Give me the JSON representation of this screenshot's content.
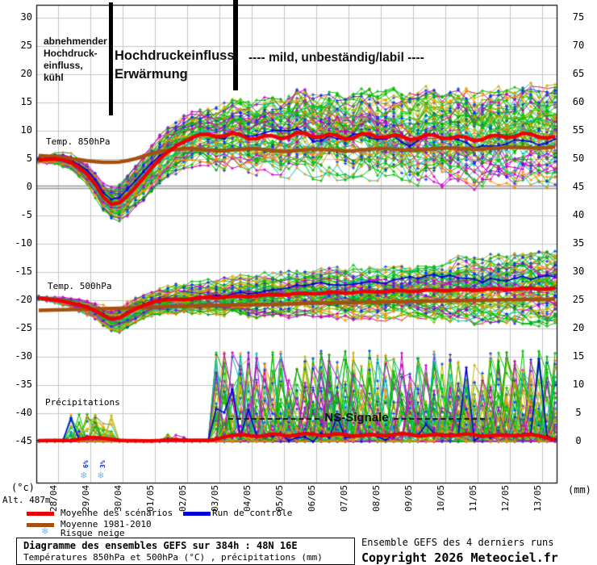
{
  "colors": {
    "mean": "#ee0000",
    "climate": "#a5500f",
    "control": "#0000dd",
    "grid": "#c6c6c6",
    "grid_zero": "#999999",
    "frame": "#000000",
    "snow": "#7ab8e8",
    "snow_label": "#0033cc",
    "member_palette": [
      "#00c000",
      "#b8b800",
      "#c800c8",
      "#00c0c0",
      "#009900",
      "#ff8c00"
    ],
    "member_weights": [
      0.36,
      0.2,
      0.16,
      0.12,
      0.09,
      0.07
    ],
    "marker_extra": [
      "#0033ff",
      "#ff9000"
    ]
  },
  "header_annotations": {
    "region1_lines": [
      "abnehmender",
      "Hochdruck-",
      "einfluss,",
      "kühl"
    ],
    "region2_line1": "Hochdruckeinfluss,",
    "region2_line2": "Erwärmung",
    "region3": "---- mild, unbeständig/labil ----",
    "ns_signal": "NS-Signale"
  },
  "panel_labels": {
    "t850": "Temp. 850hPa",
    "t500": "Temp. 500hPa",
    "precip": "Précipitations"
  },
  "axis": {
    "left_ticks": [
      30,
      25,
      20,
      15,
      10,
      5,
      0,
      -5,
      -10,
      -15,
      -20,
      -25,
      -30,
      -35,
      -40,
      -45
    ],
    "right_ticks": [
      75,
      70,
      65,
      60,
      55,
      50,
      45,
      40,
      35,
      30,
      25,
      20,
      15,
      10,
      5,
      0
    ],
    "dates": [
      "28/04",
      "29/04",
      "30/04",
      "01/05",
      "02/05",
      "03/05",
      "04/05",
      "05/05",
      "06/05",
      "07/05",
      "08/05",
      "09/05",
      "10/05",
      "11/05",
      "12/05",
      "13/05"
    ],
    "left_unit": "(°c)",
    "right_unit": "(mm)",
    "altitude": "Alt. 487m"
  },
  "snow_risk": [
    {
      "label": "6%",
      "day": 0.875
    },
    {
      "label": "3%",
      "day": 1.4
    }
  ],
  "legend": {
    "items": [
      {
        "label": "Moyenne des scénarios",
        "type": "line",
        "color": "#ee0000"
      },
      {
        "label": "Moyenne 1981-2010",
        "type": "line",
        "color": "#a5500f"
      },
      {
        "label": "Risque neige",
        "type": "snow"
      },
      {
        "label": "Run de contrôle",
        "type": "line",
        "color": "#0000dd"
      }
    ]
  },
  "footer": {
    "box_title": "Diagramme des ensembles GEFS sur 384h : 48N 16E",
    "box_subtitle": "Températures 850hPa et 500hPa (°C) , précipitations (mm)",
    "right_line1": "Ensemble GEFS des 4 derniers runs",
    "right_line2": "Copyright 2026 Meteociel.fr"
  },
  "ensemble": {
    "members": 72,
    "seed": 13,
    "t_start": -0.6,
    "t_end": 15.45,
    "t_step": 0.25
  },
  "chart_data": [
    {
      "id": "temp850",
      "type": "line",
      "title": "Temp. 850hPa",
      "y_axis": "left, °C, 30 .. -45 step 5",
      "x_axis": "days from 28/04 00h, one gridline per day, 16 days (384h)",
      "mean_anchors": [
        [
          -0.6,
          4.8
        ],
        [
          0,
          5.1
        ],
        [
          0.5,
          4.2
        ],
        [
          1,
          1.8
        ],
        [
          1.5,
          -2.6
        ],
        [
          1.75,
          -3.3
        ],
        [
          2,
          -2.4
        ],
        [
          2.5,
          0.6
        ],
        [
          3,
          4.2
        ],
        [
          3.5,
          6.8
        ],
        [
          4,
          8.4
        ],
        [
          4.5,
          9.6
        ],
        [
          5,
          8.8
        ],
        [
          5.5,
          9.8
        ],
        [
          6,
          8.2
        ],
        [
          6.5,
          9.4
        ],
        [
          7,
          8.4
        ],
        [
          7.5,
          10.0
        ],
        [
          8,
          8.6
        ],
        [
          8.5,
          9.6
        ],
        [
          9,
          8.2
        ],
        [
          9.5,
          9.8
        ],
        [
          10,
          8.6
        ],
        [
          10.5,
          9.4
        ],
        [
          11,
          8.2
        ],
        [
          11.5,
          9.6
        ],
        [
          12,
          8.4
        ],
        [
          12.5,
          9.2
        ],
        [
          13,
          8.0
        ],
        [
          13.5,
          9.4
        ],
        [
          14,
          8.6
        ],
        [
          14.5,
          9.8
        ],
        [
          15,
          8.6
        ],
        [
          15.45,
          9.0
        ]
      ],
      "climate_anchors": [
        [
          -0.6,
          5.6
        ],
        [
          0,
          5.4
        ],
        [
          0.5,
          5.0
        ],
        [
          1,
          4.6
        ],
        [
          1.5,
          4.4
        ],
        [
          2,
          4.5
        ],
        [
          2.5,
          5.2
        ],
        [
          3,
          6.2
        ],
        [
          3.5,
          6.6
        ],
        [
          4,
          6.9
        ],
        [
          5,
          6.4
        ],
        [
          6,
          6.9
        ],
        [
          7,
          6.3
        ],
        [
          8,
          6.8
        ],
        [
          9,
          6.4
        ],
        [
          10,
          6.9
        ],
        [
          11,
          6.5
        ],
        [
          12,
          7.0
        ],
        [
          13,
          6.7
        ],
        [
          14,
          7.1
        ],
        [
          15,
          6.9
        ],
        [
          15.45,
          7.2
        ]
      ],
      "spread_anchors": [
        [
          -0.6,
          0.7
        ],
        [
          0,
          0.7
        ],
        [
          1,
          1.2
        ],
        [
          2,
          1.9
        ],
        [
          3,
          2.3
        ],
        [
          4,
          2.8
        ],
        [
          5,
          3.2
        ],
        [
          6,
          3.6
        ],
        [
          8,
          4.2
        ],
        [
          10,
          4.4
        ],
        [
          12,
          4.6
        ],
        [
          14,
          4.8
        ],
        [
          15.45,
          4.9
        ]
      ]
    },
    {
      "id": "temp500",
      "type": "line",
      "title": "Temp. 500hPa",
      "y_axis": "left, °C",
      "mean_anchors": [
        [
          -0.6,
          -19.6
        ],
        [
          0,
          -20.0
        ],
        [
          0.5,
          -20.6
        ],
        [
          1,
          -21.4
        ],
        [
          1.5,
          -23.0
        ],
        [
          1.75,
          -23.6
        ],
        [
          2,
          -22.8
        ],
        [
          2.5,
          -21.2
        ],
        [
          3,
          -20.2
        ],
        [
          3.5,
          -19.8
        ],
        [
          4,
          -19.9
        ],
        [
          4.5,
          -19.4
        ],
        [
          5,
          -19.6
        ],
        [
          5.5,
          -19.2
        ],
        [
          6,
          -19.4
        ],
        [
          6.5,
          -18.9
        ],
        [
          7,
          -19.1
        ],
        [
          7.5,
          -18.7
        ],
        [
          8,
          -18.9
        ],
        [
          8.5,
          -18.5
        ],
        [
          9,
          -18.8
        ],
        [
          9.5,
          -18.4
        ],
        [
          10,
          -18.6
        ],
        [
          10.5,
          -18.2
        ],
        [
          11,
          -18.5
        ],
        [
          11.5,
          -18.1
        ],
        [
          12,
          -18.4
        ],
        [
          12.5,
          -18.0
        ],
        [
          13,
          -18.3
        ],
        [
          13.5,
          -17.9
        ],
        [
          14,
          -18.2
        ],
        [
          14.5,
          -17.8
        ],
        [
          15,
          -18.1
        ],
        [
          15.45,
          -17.8
        ]
      ],
      "climate_anchors": [
        [
          -0.6,
          -21.8
        ],
        [
          2,
          -21.4
        ],
        [
          4,
          -21.0
        ],
        [
          6,
          -20.8
        ],
        [
          8,
          -20.5
        ],
        [
          10,
          -20.3
        ],
        [
          12,
          -20.1
        ],
        [
          14,
          -19.9
        ],
        [
          15.45,
          -19.8
        ]
      ],
      "spread_anchors": [
        [
          -0.6,
          0.5
        ],
        [
          0,
          0.5
        ],
        [
          1,
          0.9
        ],
        [
          2,
          1.5
        ],
        [
          3,
          1.3
        ],
        [
          4,
          1.6
        ],
        [
          5,
          1.8
        ],
        [
          6,
          2.1
        ],
        [
          7,
          2.2
        ],
        [
          8,
          2.4
        ],
        [
          9,
          2.6
        ],
        [
          10,
          2.8
        ],
        [
          12,
          3.1
        ],
        [
          14,
          3.4
        ],
        [
          15.45,
          3.6
        ]
      ]
    },
    {
      "id": "precip",
      "type": "spike-ensemble",
      "title": "Précipitations",
      "y_axis": "right, mm, 0 at bottom",
      "mean_anchors": [
        [
          -0.6,
          0.15
        ],
        [
          0.5,
          0.2
        ],
        [
          1,
          0.8
        ],
        [
          1.5,
          0.5
        ],
        [
          2,
          0.15
        ],
        [
          3,
          0.1
        ],
        [
          3.5,
          0.35
        ],
        [
          4,
          0.2
        ],
        [
          4.8,
          0.2
        ],
        [
          5.2,
          0.9
        ],
        [
          5.7,
          1.3
        ],
        [
          6.2,
          0.8
        ],
        [
          6.7,
          1.4
        ],
        [
          7.2,
          0.9
        ],
        [
          7.7,
          1.5
        ],
        [
          8.2,
          1.0
        ],
        [
          8.7,
          1.4
        ],
        [
          9.2,
          0.9
        ],
        [
          9.7,
          1.3
        ],
        [
          10.2,
          1.0
        ],
        [
          10.7,
          1.5
        ],
        [
          11.2,
          0.9
        ],
        [
          11.7,
          1.3
        ],
        [
          12.2,
          1.0
        ],
        [
          12.7,
          1.4
        ],
        [
          13.2,
          0.9
        ],
        [
          13.7,
          1.2
        ],
        [
          14.2,
          1.0
        ],
        [
          14.7,
          1.3
        ],
        [
          15.2,
          0.6
        ],
        [
          15.45,
          0.2
        ]
      ],
      "spike_windows": [
        {
          "t0": 0.3,
          "t1": 1.7,
          "p": 0.22,
          "amp": 5
        },
        {
          "t0": 3.2,
          "t1": 3.9,
          "p": 0.22,
          "amp": 1.2
        },
        {
          "t0": 4.9,
          "t1": 15.5,
          "p": 0.42,
          "amp": 16
        }
      ]
    }
  ]
}
